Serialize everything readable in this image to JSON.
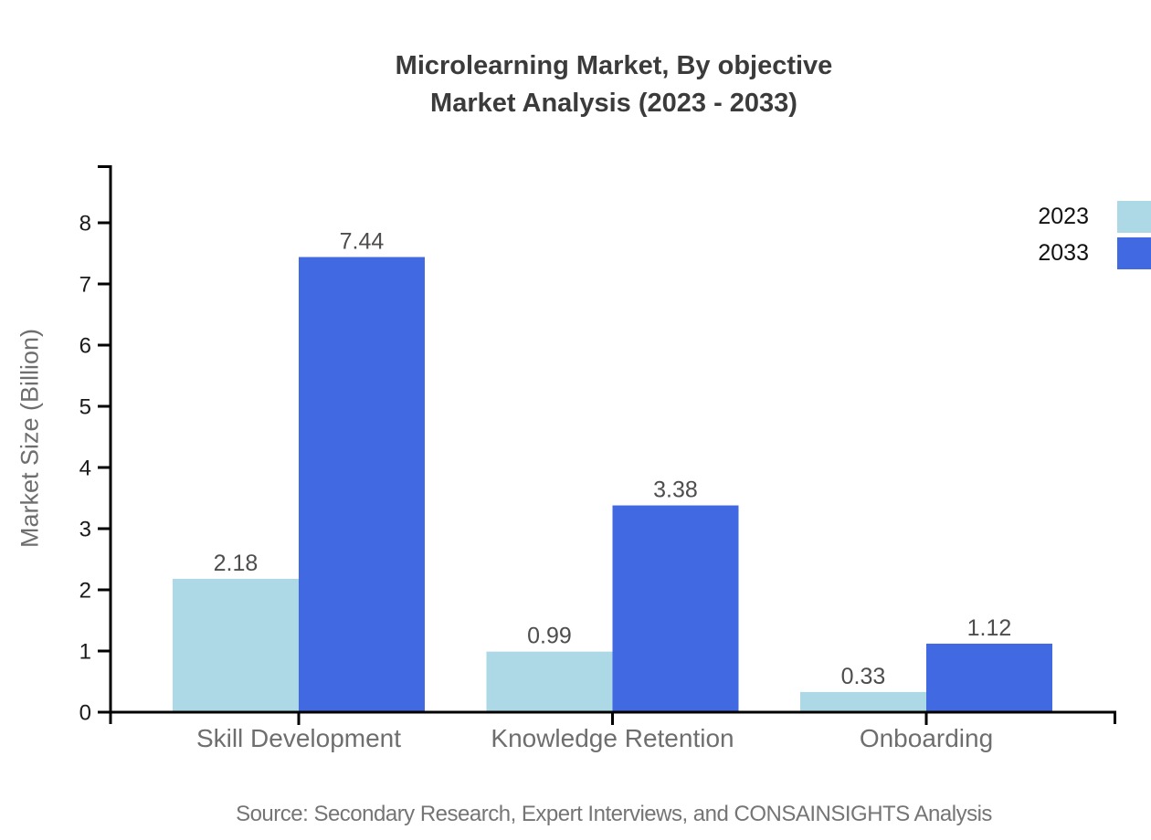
{
  "title": {
    "line1": "Microlearning Market, By objective",
    "line2": "Market Analysis (2023 - 2033)"
  },
  "source": "Source: Secondary Research, Expert Interviews, and CONSAINSIGHTS Analysis",
  "chart_data": {
    "type": "bar",
    "title": "Microlearning Market, By objective — Market Analysis (2023 - 2033)",
    "categories": [
      "Skill Development",
      "Knowledge Retention",
      "Onboarding"
    ],
    "series": [
      {
        "name": "2023",
        "color": "#add8e6",
        "values": [
          2.18,
          0.99,
          0.33
        ]
      },
      {
        "name": "2033",
        "color": "#4169e1",
        "values": [
          7.44,
          3.38,
          1.12
        ]
      }
    ],
    "xlabel": "",
    "ylabel": "Market Size (Billion)",
    "ylim": [
      0,
      8
    ],
    "yticks": [
      0,
      1,
      2,
      3,
      4,
      5,
      6,
      7,
      8
    ],
    "grid": false,
    "legend_position": "top-right",
    "value_labels": true,
    "value_label_format": "2dp"
  },
  "colors": {
    "axis": "#000000",
    "tick_label": "#1a1a1a",
    "value_label": "#4d4d4d",
    "category_label": "#6e6e6e",
    "title": "#3b3b3b",
    "source": "#757575",
    "background": "#ffffff"
  }
}
